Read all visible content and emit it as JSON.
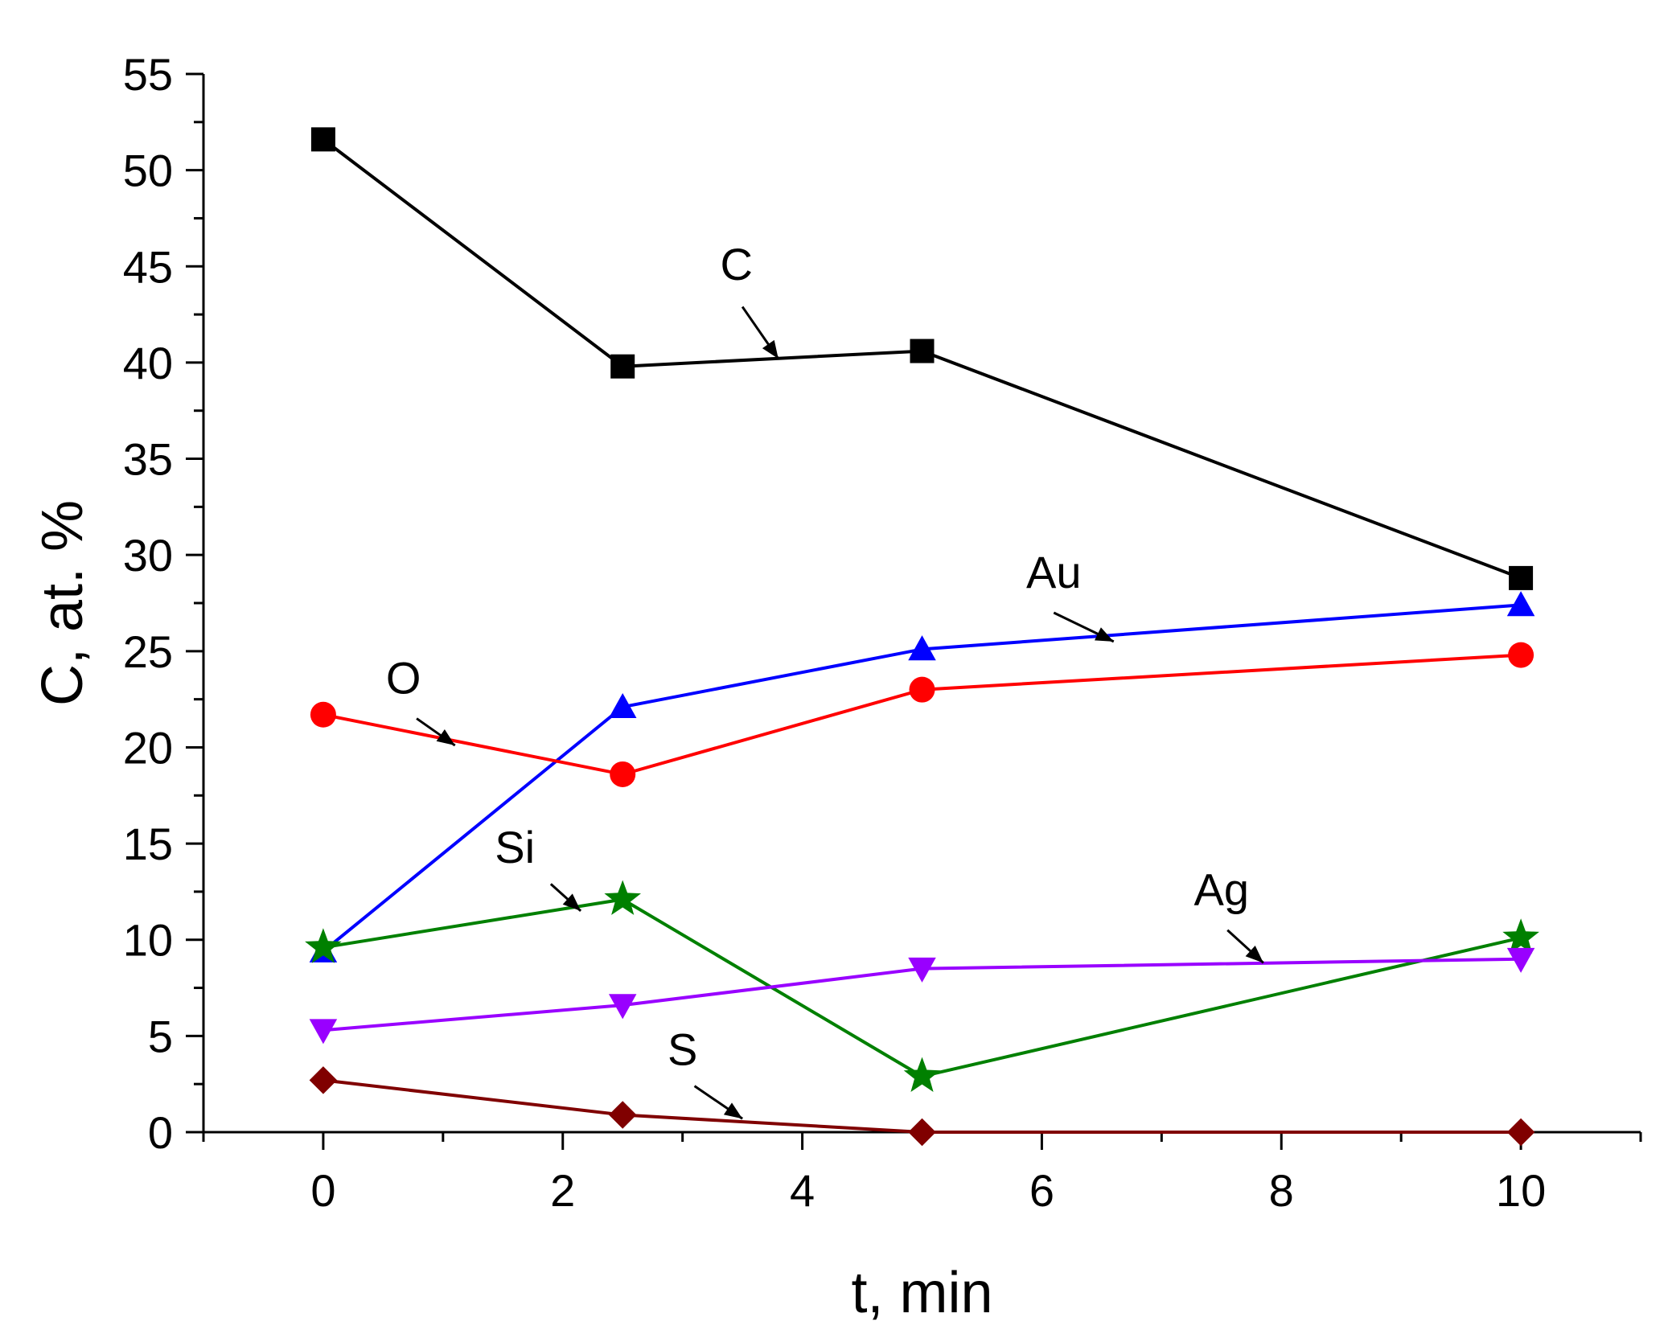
{
  "chart_data": {
    "type": "line",
    "xlabel": "t, min",
    "ylabel": "C, at. %",
    "xlim": [
      -1,
      11
    ],
    "ylim": [
      0,
      55
    ],
    "xticks": [
      0,
      2,
      4,
      6,
      8,
      10
    ],
    "yticks": [
      0,
      5,
      10,
      15,
      20,
      25,
      30,
      35,
      40,
      45,
      50,
      55
    ],
    "grid": false,
    "legend": "none",
    "series": [
      {
        "name": "C",
        "color": "#000000",
        "marker": "square",
        "x": [
          0,
          2.5,
          5,
          10
        ],
        "y": [
          51.6,
          39.8,
          40.6,
          28.8
        ]
      },
      {
        "name": "Au",
        "color": "#0000ff",
        "marker": "triangle-up",
        "x": [
          0,
          2.5,
          5,
          10
        ],
        "y": [
          9.4,
          22.1,
          25.1,
          27.4
        ]
      },
      {
        "name": "O",
        "color": "#ff0000",
        "marker": "circle",
        "x": [
          0,
          2.5,
          5,
          10
        ],
        "y": [
          21.7,
          18.6,
          23.0,
          24.8
        ]
      },
      {
        "name": "Si",
        "color": "#008000",
        "marker": "star",
        "x": [
          0,
          2.5,
          5,
          10
        ],
        "y": [
          9.6,
          12.1,
          2.9,
          10.1
        ]
      },
      {
        "name": "Ag",
        "color": "#9900ff",
        "marker": "triangle-down",
        "x": [
          0,
          2.5,
          5,
          10
        ],
        "y": [
          5.3,
          6.6,
          8.5,
          9.0
        ]
      },
      {
        "name": "S",
        "color": "#800000",
        "marker": "diamond",
        "x": [
          0,
          2.5,
          5,
          10
        ],
        "y": [
          2.7,
          0.9,
          0,
          0
        ]
      }
    ],
    "annotations": [
      {
        "text": "C",
        "label_x": 3.45,
        "label_y": 44.3,
        "arrow_from": [
          3.5,
          42.9
        ],
        "arrow_to": [
          3.8,
          40.2
        ]
      },
      {
        "text": "Au",
        "label_x": 6.1,
        "label_y": 28.3,
        "arrow_from": [
          6.1,
          27.0
        ],
        "arrow_to": [
          6.6,
          25.5
        ]
      },
      {
        "text": "O",
        "label_x": 0.67,
        "label_y": 22.8,
        "arrow_from": [
          0.78,
          21.5
        ],
        "arrow_to": [
          1.1,
          20.1
        ]
      },
      {
        "text": "Si",
        "label_x": 1.6,
        "label_y": 14.0,
        "arrow_from": [
          1.9,
          12.9
        ],
        "arrow_to": [
          2.15,
          11.5
        ]
      },
      {
        "text": "Ag",
        "label_x": 7.5,
        "label_y": 11.8,
        "arrow_from": [
          7.55,
          10.5
        ],
        "arrow_to": [
          7.85,
          8.8
        ]
      },
      {
        "text": "S",
        "label_x": 3.0,
        "label_y": 3.5,
        "arrow_from": [
          3.1,
          2.4
        ],
        "arrow_to": [
          3.5,
          0.7
        ]
      }
    ]
  }
}
